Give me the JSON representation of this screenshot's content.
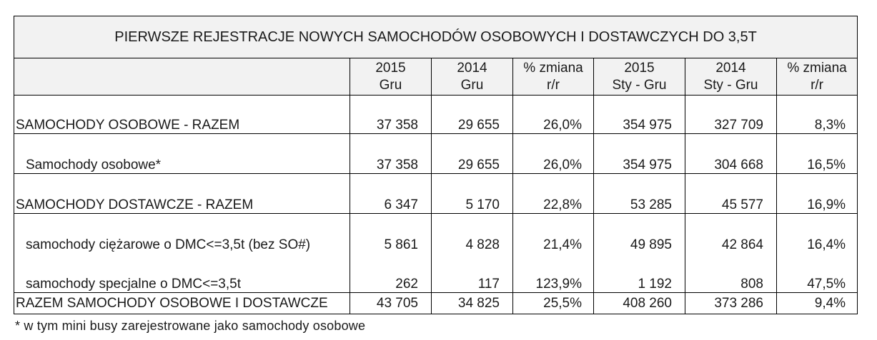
{
  "title": "PIERWSZE REJESTRACJE NOWYCH SAMOCHODÓW OSOBOWYCH I DOSTAWCZYCH DO 3,5T",
  "headers": [
    {
      "line1": "2015",
      "line2": "Gru"
    },
    {
      "line1": "2014",
      "line2": "Gru"
    },
    {
      "line1": "% zmiana",
      "line2": "r/r"
    },
    {
      "line1": "2015",
      "line2": "Sty - Gru"
    },
    {
      "line1": "2014",
      "line2": "Sty - Gru"
    },
    {
      "line1": "% zmiana",
      "line2": "r/r"
    }
  ],
  "rows": [
    {
      "label": "SAMOCHODY OSOBOWE - RAZEM",
      "v": [
        "37 358",
        "29 655",
        "26,0%",
        "354 975",
        "327 709",
        "8,3%"
      ]
    },
    {
      "label": "Samochody osobowe*",
      "v": [
        "37 358",
        "29 655",
        "26,0%",
        "354 975",
        "304 668",
        "16,5%"
      ]
    },
    {
      "label": "SAMOCHODY DOSTAWCZE - RAZEM",
      "v": [
        "6 347",
        "5 170",
        "22,8%",
        "53 285",
        "45 577",
        "16,9%"
      ]
    },
    {
      "label": "samochody ciężarowe o DMC<=3,5t (bez SO#)",
      "v": [
        "5 861",
        "4 828",
        "21,4%",
        "49 895",
        "42 864",
        "16,4%"
      ]
    },
    {
      "label": "samochody specjalne o DMC<=3,5t",
      "v": [
        "262",
        "117",
        "123,9%",
        "1 192",
        "808",
        "47,5%"
      ]
    },
    {
      "label": "RAZEM SAMOCHODY OSOBOWE I DOSTAWCZE",
      "v": [
        "43 705",
        "34 825",
        "25,5%",
        "408 260",
        "373 286",
        "9,4%"
      ]
    }
  ],
  "footnote": "* w tym mini busy zarejestrowane jako samochody osobowe"
}
